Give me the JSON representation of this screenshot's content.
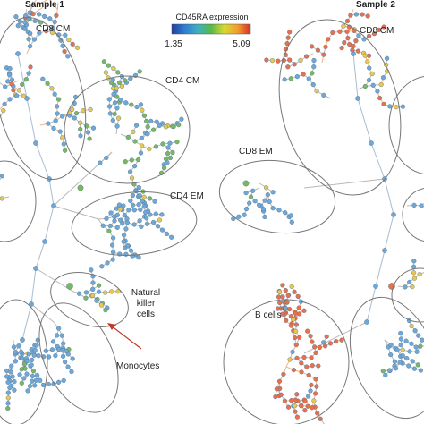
{
  "panels": [
    {
      "title": "Sample 1",
      "groups": [
        "CD8 CM",
        "CD4 CM",
        "CD4 EM",
        "Natural",
        "killer",
        "cells",
        "Monocytes"
      ]
    },
    {
      "title": "Sample 2",
      "groups": [
        "CD8 CM",
        "CD8 EM",
        "B cells"
      ]
    }
  ],
  "colorbar": {
    "title": "CD45RA expression",
    "min_label": "1.35",
    "max_label": "5.09",
    "min": 1.35,
    "max": 5.09,
    "colors": [
      "#1f3fa0",
      "#2f7fd0",
      "#3fb0c0",
      "#58b848",
      "#d8d830",
      "#f0a030",
      "#d83020"
    ]
  },
  "palette": {
    "edge": "#b8b8b8",
    "ellipse": "#777777",
    "arrow": "#c0392b",
    "node_low": "#6fa8d6",
    "node_mid": "#7ab860",
    "node_yellow": "#e8c850",
    "node_high": "#e8704a"
  }
}
